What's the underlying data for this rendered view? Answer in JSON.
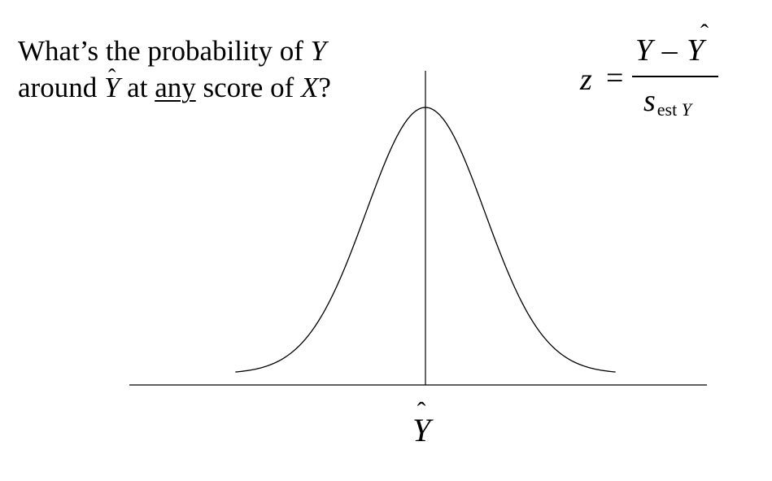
{
  "question": {
    "part1": "What’s the probability of ",
    "var_y": "Y",
    "part2": "around ",
    "var_yhat": "Y",
    "part3": " at ",
    "emphasis": "any",
    "part4": " score of ",
    "var_x": "X",
    "part5": "?"
  },
  "formula": {
    "lhs": "z",
    "equals": "=",
    "numerator": "Y – Y",
    "denominator_main": "s",
    "denominator_sub": "est ",
    "denominator_sub_var": "Y"
  },
  "axis": {
    "center_label": "Y"
  },
  "chart_data": {
    "type": "line",
    "description_free": true,
    "series": [
      {
        "curve": "normal-density",
        "mean": 0,
        "sd": 1,
        "x_range": [
          -3.2,
          3.2
        ]
      }
    ],
    "center_marker_at": 0
  }
}
